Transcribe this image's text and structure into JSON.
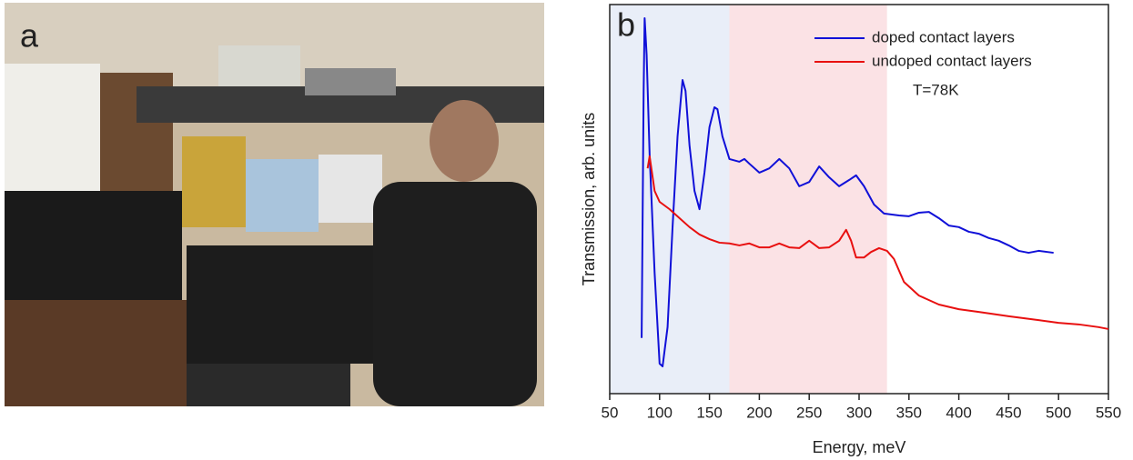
{
  "panel_a": {
    "label": "a"
  },
  "chart_data": {
    "type": "line",
    "panel_label": "b",
    "x_label": "Energy, meV",
    "y_label": "Transmission, arb. units",
    "annotation": "T=78K",
    "xlim": [
      50,
      550
    ],
    "xticks": [
      50,
      100,
      150,
      200,
      250,
      300,
      350,
      400,
      450,
      500,
      550
    ],
    "ylim": [
      0,
      100
    ],
    "shaded_regions": [
      {
        "xlim": [
          50,
          170
        ],
        "color": "#e9eef8"
      },
      {
        "xlim": [
          170,
          328
        ],
        "color": "#fbe2e5"
      }
    ],
    "series": [
      {
        "name": "doped contact layers",
        "color": "#1010d8",
        "x": [
          82,
          84,
          85,
          87,
          90,
          95,
          100,
          103,
          108,
          113,
          118,
          123,
          126,
          130,
          135,
          140,
          145,
          150,
          155,
          158,
          163,
          170,
          180,
          185,
          190,
          200,
          210,
          220,
          230,
          240,
          250,
          260,
          270,
          280,
          290,
          297,
          305,
          315,
          325,
          340,
          350,
          360,
          370,
          380,
          390,
          400,
          410,
          420,
          430,
          440,
          450,
          460,
          470,
          480,
          495
        ],
        "values": [
          14.3,
          77.8,
          96.5,
          87.1,
          61.4,
          31.1,
          7.7,
          7.0,
          17.1,
          42.8,
          66.1,
          80.6,
          77.8,
          63.8,
          52.1,
          47.4,
          56.8,
          68.5,
          73.6,
          73.1,
          66.1,
          60.3,
          59.6,
          60.3,
          59.1,
          56.8,
          57.9,
          60.3,
          57.9,
          53.3,
          54.4,
          58.4,
          55.6,
          53.3,
          54.9,
          56.1,
          53.3,
          48.6,
          46.3,
          45.8,
          45.6,
          46.5,
          46.7,
          45.1,
          43.2,
          42.8,
          41.6,
          41.1,
          40.0,
          39.3,
          38.1,
          36.7,
          36.2,
          36.7,
          36.2
        ]
      },
      {
        "name": "undoped contact layers",
        "color": "#e81010",
        "x": [
          88,
          90,
          95,
          100,
          110,
          120,
          130,
          140,
          150,
          160,
          170,
          180,
          190,
          200,
          210,
          220,
          230,
          240,
          250,
          260,
          270,
          280,
          287,
          292,
          297,
          305,
          312,
          320,
          328,
          335,
          345,
          360,
          380,
          400,
          420,
          450,
          480,
          500,
          520,
          540,
          550
        ],
        "values": [
          57.9,
          61.0,
          52.1,
          49.3,
          47.4,
          45.1,
          42.8,
          40.9,
          39.7,
          38.8,
          38.6,
          38.1,
          38.6,
          37.6,
          37.6,
          38.6,
          37.6,
          37.4,
          39.3,
          37.4,
          37.6,
          39.3,
          42.1,
          39.3,
          35.0,
          35.0,
          36.4,
          37.4,
          36.7,
          34.6,
          28.7,
          25.2,
          22.9,
          21.7,
          21.0,
          19.9,
          18.9,
          18.2,
          17.8,
          17.1,
          16.6
        ]
      }
    ]
  }
}
